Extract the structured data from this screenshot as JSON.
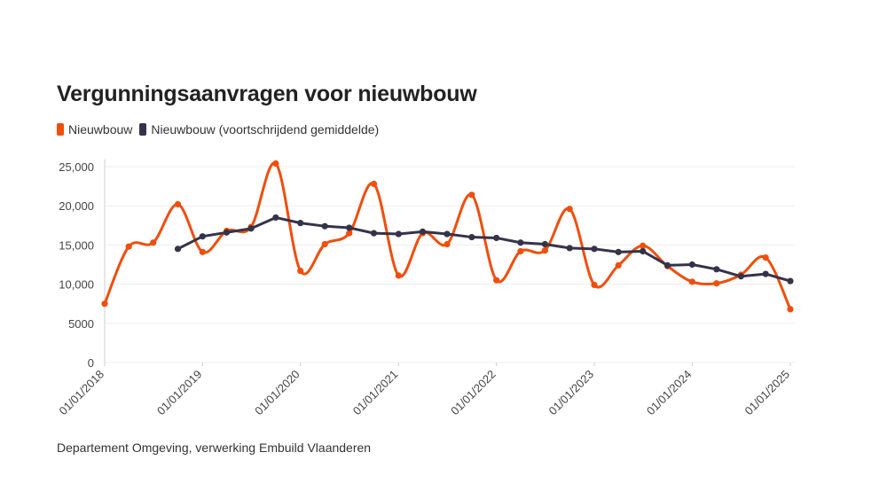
{
  "title": "Vergunningsaanvragen voor nieuwbouw",
  "source": "Departement Omgeving, verwerking Embuild Vlaanderen",
  "colors": {
    "series1": "#f04e0c",
    "series2": "#35334a",
    "grid": "#eeeeee"
  },
  "chart_data": {
    "type": "line",
    "title": "Vergunningsaanvragen voor nieuwbouw",
    "xlabel": "",
    "ylabel": "",
    "ylim": [
      0,
      25000
    ],
    "yticks": [
      0,
      5000,
      10000,
      15000,
      20000,
      25000
    ],
    "ytick_labels": [
      "0",
      "5000",
      "10,000",
      "15,000",
      "20,000",
      "25,000"
    ],
    "xticks": [
      "01/01/2018",
      "01/01/2019",
      "01/01/2020",
      "01/01/2021",
      "01/01/2022",
      "01/01/2023",
      "01/01/2024",
      "01/01/2025"
    ],
    "xlim": [
      "01/01/2018",
      "01/01/2025"
    ],
    "grid": true,
    "legend_position": "top-left",
    "series": [
      {
        "name": "Nieuwbouw",
        "x": [
          "01/01/2018",
          "01/04/2018",
          "01/07/2018",
          "01/10/2018",
          "01/01/2019",
          "01/04/2019",
          "01/07/2019",
          "01/10/2019",
          "01/01/2020",
          "01/04/2020",
          "01/07/2020",
          "01/10/2020",
          "01/01/2021",
          "01/04/2021",
          "01/07/2021",
          "01/10/2021",
          "01/01/2022",
          "01/04/2022",
          "01/07/2022",
          "01/10/2022",
          "01/01/2023",
          "01/04/2023",
          "01/07/2023",
          "01/10/2023",
          "01/01/2024",
          "01/04/2024",
          "01/07/2024",
          "01/10/2024",
          "01/01/2025"
        ],
        "values": [
          7500,
          14800,
          15300,
          20200,
          14100,
          16800,
          17300,
          25400,
          11700,
          15100,
          16500,
          22800,
          11100,
          16500,
          15100,
          21400,
          10500,
          14200,
          14300,
          19600,
          9900,
          12400,
          14900,
          12300,
          10300,
          10100,
          11200,
          13400,
          6800
        ]
      },
      {
        "name": "Nieuwbouw (voortschrijdend gemiddelde)",
        "x": [
          "01/10/2018",
          "01/01/2019",
          "01/04/2019",
          "01/07/2019",
          "01/10/2019",
          "01/01/2020",
          "01/04/2020",
          "01/07/2020",
          "01/10/2020",
          "01/01/2021",
          "01/04/2021",
          "01/07/2021",
          "01/10/2021",
          "01/01/2022",
          "01/04/2022",
          "01/07/2022",
          "01/10/2022",
          "01/01/2023",
          "01/04/2023",
          "01/07/2023",
          "01/10/2023",
          "01/01/2024",
          "01/04/2024",
          "01/07/2024",
          "01/10/2024",
          "01/01/2025"
        ],
        "values": [
          14500,
          16100,
          16600,
          17100,
          18500,
          17800,
          17400,
          17200,
          16500,
          16400,
          16700,
          16400,
          16000,
          15900,
          15300,
          15100,
          14600,
          14500,
          14100,
          14200,
          12400,
          12500,
          11900,
          11000,
          11300,
          10400
        ]
      }
    ]
  }
}
